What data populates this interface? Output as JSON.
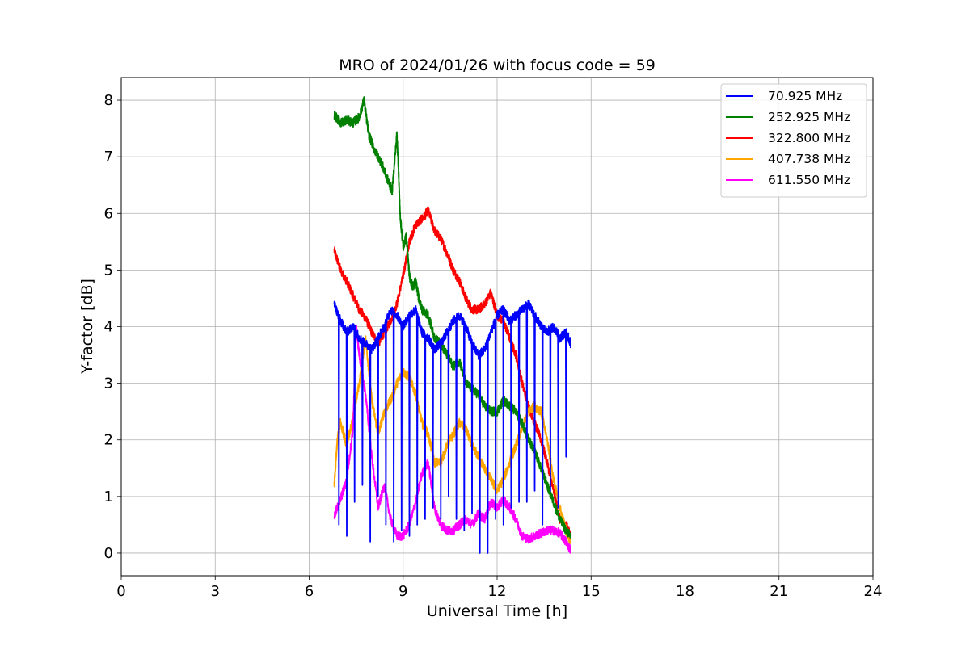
{
  "chart_data": {
    "type": "line",
    "title": "MRO of 2024/01/26 with focus code = 59",
    "xlabel": "Universal Time [h]",
    "ylabel": "Y-factor [dB]",
    "xlim": [
      0,
      24
    ],
    "ylim": [
      -0.4,
      8.4
    ],
    "xticks": [
      0,
      3,
      6,
      9,
      12,
      15,
      18,
      21,
      24
    ],
    "yticks": [
      0,
      1,
      2,
      3,
      4,
      5,
      6,
      7,
      8
    ],
    "grid": true,
    "legend_position": "top-right",
    "series": [
      {
        "name": "70.925 MHz",
        "label": " 70.925 MHz",
        "color": "#0000ff",
        "x": [
          6.8,
          7.0,
          7.2,
          7.4,
          7.6,
          7.8,
          8.0,
          8.2,
          8.4,
          8.6,
          8.8,
          9.0,
          9.2,
          9.4,
          9.6,
          9.8,
          10.0,
          10.2,
          10.4,
          10.6,
          10.8,
          11.0,
          11.2,
          11.4,
          11.6,
          11.8,
          12.0,
          12.2,
          12.4,
          12.6,
          12.8,
          13.0,
          13.2,
          13.4,
          13.6,
          13.8,
          14.0,
          14.2,
          14.35
        ],
        "y": [
          4.4,
          4.1,
          3.9,
          4.0,
          3.8,
          3.7,
          3.6,
          3.8,
          4.0,
          4.3,
          4.2,
          4.0,
          4.2,
          4.3,
          3.9,
          3.8,
          3.6,
          3.7,
          3.9,
          4.1,
          4.2,
          4.0,
          3.7,
          3.5,
          3.6,
          3.9,
          4.2,
          4.3,
          4.1,
          4.2,
          4.3,
          4.4,
          4.2,
          4.0,
          3.9,
          4.0,
          3.8,
          3.9,
          3.7
        ],
        "dips": {
          "x": [
            6.95,
            7.2,
            7.45,
            7.7,
            7.95,
            8.2,
            8.45,
            8.7,
            8.95,
            9.2,
            9.45,
            9.7,
            9.95,
            10.2,
            10.45,
            10.7,
            10.95,
            11.2,
            11.45,
            11.7,
            11.95,
            12.2,
            12.45,
            12.7,
            12.95,
            13.2,
            13.45,
            13.7,
            13.95,
            14.2
          ],
          "y": [
            0.5,
            0.3,
            0.9,
            1.2,
            0.2,
            1.0,
            0.5,
            0.2,
            0.4,
            0.3,
            0.5,
            0.6,
            0.8,
            0.6,
            1.0,
            0.6,
            0.4,
            0.7,
            0.0,
            0.0,
            0.6,
            0.5,
            0.8,
            0.9,
            0.9,
            1.1,
            0.5,
            1.1,
            0.8,
            1.7
          ]
        }
      },
      {
        "name": "252.925 MHz",
        "label": "252.925 MHz",
        "color": "#008000",
        "x": [
          6.8,
          7.0,
          7.2,
          7.4,
          7.6,
          7.75,
          7.9,
          8.1,
          8.3,
          8.5,
          8.65,
          8.8,
          8.85,
          8.9,
          9.0,
          9.1,
          9.2,
          9.3,
          9.4,
          9.5,
          9.6,
          9.8,
          10.0,
          10.2,
          10.4,
          10.6,
          10.8,
          11.0,
          11.2,
          11.4,
          11.6,
          11.8,
          12.0,
          12.2,
          12.4,
          12.6,
          12.8,
          13.0,
          13.2,
          13.4,
          13.6,
          13.8,
          14.0,
          14.2,
          14.35
        ],
        "y": [
          7.75,
          7.6,
          7.65,
          7.6,
          7.7,
          8.0,
          7.4,
          7.1,
          6.9,
          6.6,
          6.4,
          7.4,
          6.8,
          6.0,
          5.4,
          5.6,
          4.9,
          4.7,
          4.8,
          4.5,
          4.3,
          4.2,
          3.8,
          3.7,
          3.5,
          3.3,
          3.4,
          3.0,
          2.9,
          2.8,
          2.6,
          2.5,
          2.5,
          2.7,
          2.6,
          2.5,
          2.3,
          2.0,
          1.8,
          1.5,
          1.2,
          0.9,
          0.6,
          0.4,
          0.3
        ]
      },
      {
        "name": "322.800 MHz",
        "label": "322.800 MHz",
        "color": "#ff0000",
        "x": [
          6.8,
          7.0,
          7.2,
          7.4,
          7.6,
          7.8,
          8.0,
          8.2,
          8.4,
          8.6,
          8.8,
          9.0,
          9.2,
          9.4,
          9.6,
          9.8,
          10.0,
          10.2,
          10.4,
          10.6,
          10.8,
          11.0,
          11.2,
          11.4,
          11.6,
          11.8,
          12.0,
          12.2,
          12.4,
          12.6,
          12.8,
          13.0,
          13.2,
          13.4,
          13.6,
          13.8,
          14.0,
          14.2,
          14.35
        ],
        "y": [
          5.35,
          5.0,
          4.8,
          4.55,
          4.3,
          4.15,
          3.9,
          3.7,
          3.9,
          4.1,
          4.4,
          4.9,
          5.5,
          5.8,
          5.9,
          6.05,
          5.7,
          5.55,
          5.3,
          5.0,
          4.8,
          4.5,
          4.3,
          4.3,
          4.4,
          4.6,
          4.2,
          4.1,
          3.8,
          3.5,
          3.0,
          2.6,
          2.3,
          2.0,
          1.6,
          1.1,
          0.6,
          0.5,
          0.3
        ]
      },
      {
        "name": "407.738 MHz",
        "label": "407.738 MHz",
        "color": "#ffa500",
        "x": [
          6.8,
          6.9,
          7.0,
          7.2,
          7.4,
          7.6,
          7.8,
          8.0,
          8.2,
          8.4,
          8.6,
          8.8,
          9.0,
          9.2,
          9.4,
          9.6,
          9.8,
          10.0,
          10.2,
          10.4,
          10.6,
          10.8,
          11.0,
          11.2,
          11.4,
          11.6,
          11.8,
          12.0,
          12.2,
          12.4,
          12.6,
          12.8,
          13.0,
          13.2,
          13.4,
          13.6,
          13.8,
          14.0,
          14.2,
          14.35
        ],
        "y": [
          1.2,
          2.0,
          2.3,
          1.9,
          2.4,
          3.0,
          3.8,
          2.7,
          2.1,
          2.5,
          2.7,
          3.0,
          3.2,
          3.1,
          2.8,
          2.3,
          2.1,
          1.6,
          1.6,
          1.9,
          2.1,
          2.3,
          2.2,
          1.9,
          1.7,
          1.5,
          1.3,
          1.1,
          1.3,
          1.6,
          1.9,
          2.2,
          2.5,
          2.6,
          2.5,
          2.0,
          1.3,
          0.8,
          0.4,
          0.2
        ]
      },
      {
        "name": "611.550 MHz",
        "label": "611.550 MHz",
        "color": "#ff00ff",
        "x": [
          6.8,
          7.0,
          7.2,
          7.4,
          7.5,
          7.6,
          7.8,
          8.0,
          8.2,
          8.4,
          8.6,
          8.8,
          9.0,
          9.2,
          9.4,
          9.6,
          9.8,
          10.0,
          10.2,
          10.4,
          10.6,
          10.8,
          11.0,
          11.2,
          11.4,
          11.6,
          11.8,
          12.0,
          12.2,
          12.4,
          12.6,
          12.8,
          13.0,
          13.2,
          13.4,
          13.6,
          13.8,
          14.0,
          14.2,
          14.35
        ],
        "y": [
          0.65,
          0.95,
          1.3,
          2.2,
          4.0,
          3.5,
          2.8,
          1.7,
          0.8,
          1.2,
          0.6,
          0.3,
          0.3,
          0.5,
          0.9,
          1.4,
          1.6,
          0.8,
          0.5,
          0.4,
          0.4,
          0.5,
          0.6,
          0.5,
          0.7,
          0.6,
          0.9,
          0.8,
          0.95,
          0.8,
          0.6,
          0.3,
          0.25,
          0.3,
          0.35,
          0.4,
          0.4,
          0.35,
          0.2,
          0.05
        ]
      }
    ]
  }
}
